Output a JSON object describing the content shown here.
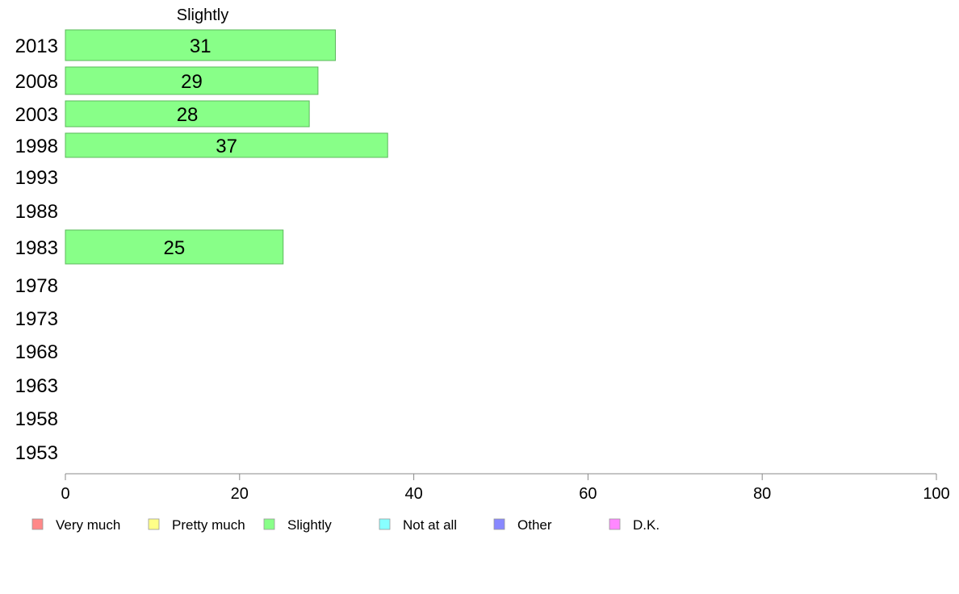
{
  "chart_data": {
    "type": "bar",
    "orientation": "horizontal",
    "panel_title": "Slightly",
    "categories": [
      "2013",
      "2008",
      "2003",
      "1998",
      "1993",
      "1988",
      "1983",
      "1978",
      "1973",
      "1968",
      "1963",
      "1958",
      "1953"
    ],
    "series": [
      {
        "name": "Slightly",
        "color": "#88ff88",
        "values": [
          31,
          29,
          28,
          37,
          null,
          null,
          25,
          null,
          null,
          null,
          null,
          null,
          null
        ],
        "labels": [
          "31",
          "29",
          "28",
          "37",
          "",
          "",
          "25",
          "",
          "",
          "",
          "",
          "",
          ""
        ]
      }
    ],
    "xlim": [
      0,
      100
    ],
    "x_ticks": [
      0,
      20,
      40,
      60,
      80,
      100
    ],
    "x_tick_labels": [
      "0",
      "20",
      "40",
      "60",
      "80",
      "100"
    ],
    "grid": false,
    "legend_position": "bottom",
    "legend": [
      {
        "label": "Very much",
        "color": "#ff8888"
      },
      {
        "label": "Pretty much",
        "color": "#ffff88"
      },
      {
        "label": "Slightly",
        "color": "#88ff88"
      },
      {
        "label": "Not at all",
        "color": "#88ffff"
      },
      {
        "label": "Other",
        "color": "#8888ff"
      },
      {
        "label": "D.K.",
        "color": "#ff88ff"
      }
    ]
  }
}
